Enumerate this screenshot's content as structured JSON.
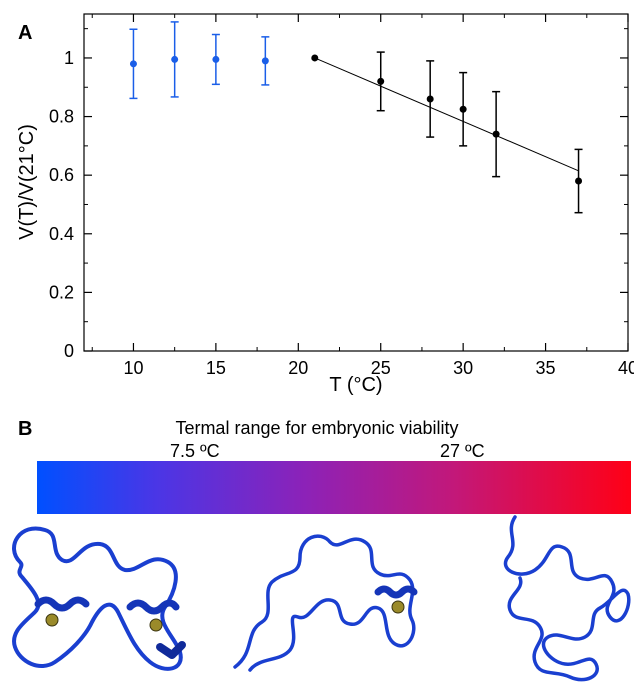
{
  "panels": {
    "a_label": "A",
    "b_label": "B"
  },
  "chart_data": {
    "type": "scatter",
    "title": "",
    "xlabel": "T (°C)",
    "ylabel": "V(T)/V(21°C)",
    "xlim": [
      7,
      40
    ],
    "ylim": [
      0,
      1.15
    ],
    "xticks": [
      10,
      15,
      20,
      25,
      30,
      35,
      40
    ],
    "yticks": [
      0,
      0.2,
      0.4,
      0.6,
      0.8,
      1
    ],
    "grid": false,
    "series": [
      {
        "color": "#1a5ee8",
        "x": [
          10,
          12.5,
          15,
          18
        ],
        "y": [
          0.98,
          0.995,
          0.995,
          0.99
        ],
        "err": [
          0.118,
          0.128,
          0.085,
          0.082
        ]
      },
      {
        "color": "#000000",
        "x": [
          21,
          25,
          28,
          30,
          32,
          37
        ],
        "y": [
          1.0,
          0.92,
          0.86,
          0.825,
          0.74,
          0.58
        ],
        "err": [
          0,
          0.1,
          0.13,
          0.125,
          0.145,
          0.108
        ]
      }
    ],
    "fit_line": {
      "color": "#000000",
      "x": [
        21,
        37
      ],
      "y": [
        1.0,
        0.615
      ]
    }
  },
  "thermal_bar": {
    "title": "Termal range for embryonic viability",
    "low_label": "7.5 ºC",
    "high_label": "27 ºC",
    "color_start": "#0050ff",
    "color_end": "#ff0016"
  },
  "structures": {
    "ribbon_color": "#1a3fd0",
    "ion_color": "#9a8a2a"
  }
}
